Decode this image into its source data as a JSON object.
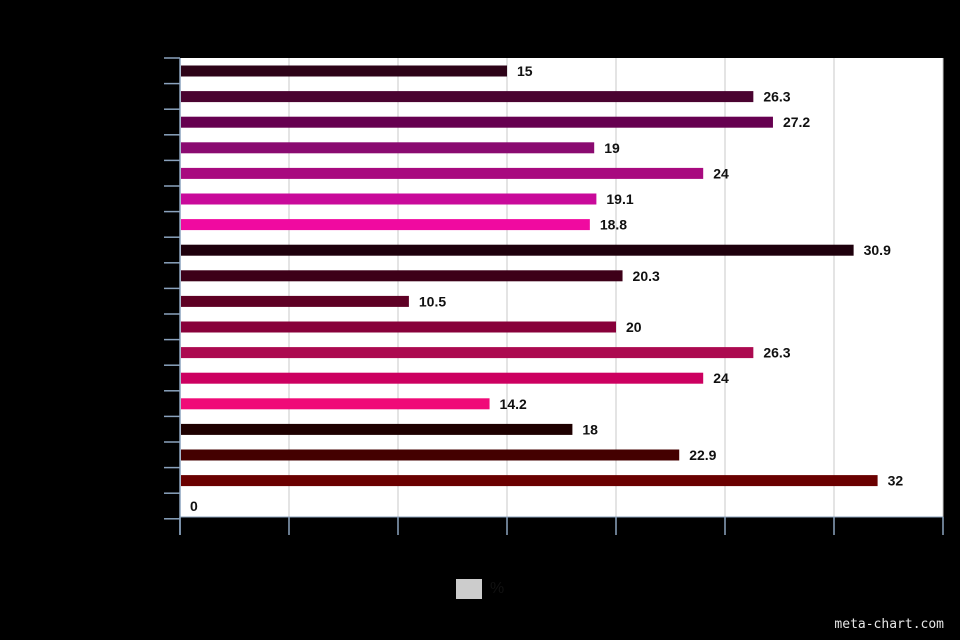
{
  "chart_data": {
    "type": "bar",
    "orientation": "horizontal",
    "categories": [
      "",
      "",
      "",
      "",
      "",
      "",
      "",
      "",
      "",
      "",
      "",
      "",
      "",
      "",
      "",
      "",
      "",
      ""
    ],
    "values": [
      15,
      26.3,
      27.2,
      19,
      24,
      19.1,
      18.8,
      30.9,
      20.3,
      10.5,
      20,
      26.3,
      24,
      14.2,
      18,
      22.9,
      32,
      0
    ],
    "value_labels": [
      "15",
      "26.3",
      "27.2",
      "19",
      "24",
      "19.1",
      "18.8",
      "30.9",
      "20.3",
      "10.5",
      "20",
      "26.3",
      "24",
      "14.2",
      "18",
      "22.9",
      "32",
      "0"
    ],
    "bar_colors": [
      "#2d0318",
      "#4a0330",
      "#660050",
      "#8a0a70",
      "#a80a7f",
      "#c90a9a",
      "#f00aa0",
      "#1e000c",
      "#3d0018",
      "#5e0024",
      "#88003a",
      "#ac0a50",
      "#cc0060",
      "#f00a78",
      "#1e0000",
      "#440000",
      "#6a0000",
      "#8a1000"
    ],
    "xlim": [
      0,
      35
    ],
    "grid": true,
    "legend": {
      "label": "%",
      "color": "#cccccc",
      "position": "bottom"
    }
  },
  "watermark": "meta-chart.com"
}
